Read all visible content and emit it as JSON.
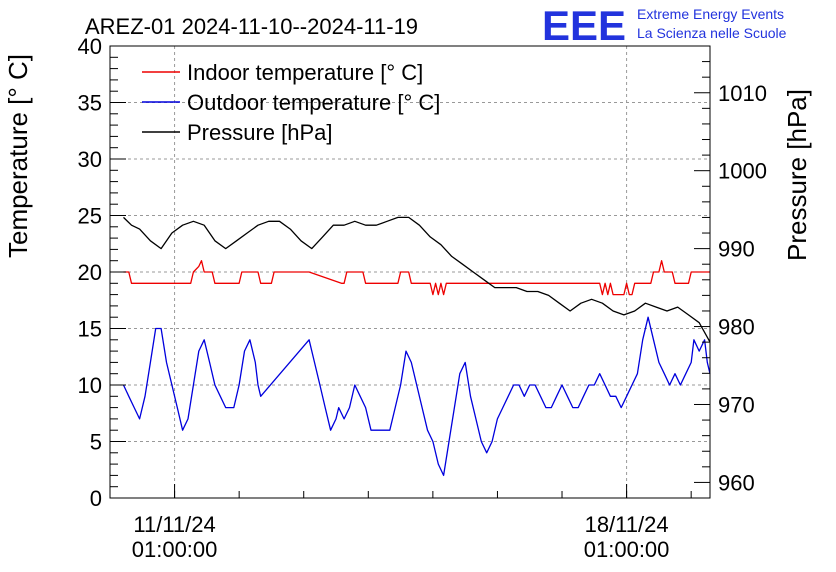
{
  "chart_data": {
    "type": "line",
    "title": "AREZ-01 2024-11-10--2024-11-19",
    "ylabel": "Temperature [° C]",
    "y2label": "Pressure [hPa]",
    "ylim": [
      0,
      40
    ],
    "y2lim": [
      958,
      1016
    ],
    "xlim": [
      "2024-11-10 01:00",
      "2024-11-19 08:00"
    ],
    "x_ticks": [
      {
        "date": "2024-11-11 01:00",
        "label_date": "11/11/24",
        "label_time": "01:00:00"
      },
      {
        "date": "2024-11-18 01:00",
        "label_date": "18/11/24",
        "label_time": "01:00:00"
      }
    ],
    "y_ticks": [
      0,
      5,
      10,
      15,
      20,
      25,
      30,
      35,
      40
    ],
    "y2_ticks": [
      960,
      970,
      980,
      990,
      1000,
      1010
    ],
    "grid": true,
    "legend_position": "top-left",
    "series": [
      {
        "name": "Indoor temperature [° C]",
        "axis": "left",
        "color": "#ee0000",
        "points": [
          [
            "2024-11-10 06:00",
            20
          ],
          [
            "2024-11-10 08:00",
            20
          ],
          [
            "2024-11-10 09:00",
            19
          ],
          [
            "2024-11-11 07:00",
            19
          ],
          [
            "2024-11-11 08:00",
            20
          ],
          [
            "2024-11-11 10:00",
            20.5
          ],
          [
            "2024-11-11 11:00",
            21
          ],
          [
            "2024-11-11 12:00",
            20
          ],
          [
            "2024-11-11 15:00",
            20
          ],
          [
            "2024-11-11 16:00",
            19
          ],
          [
            "2024-11-12 01:00",
            19
          ],
          [
            "2024-11-12 02:00",
            20
          ],
          [
            "2024-11-12 08:00",
            20
          ],
          [
            "2024-11-12 09:00",
            19
          ],
          [
            "2024-11-12 13:00",
            19
          ],
          [
            "2024-11-12 14:00",
            20
          ],
          [
            "2024-11-13 03:00",
            20
          ],
          [
            "2024-11-13 15:00",
            19
          ],
          [
            "2024-11-13 16:00",
            19
          ],
          [
            "2024-11-13 17:00",
            20
          ],
          [
            "2024-11-13 23:00",
            20
          ],
          [
            "2024-11-14 00:00",
            19
          ],
          [
            "2024-11-14 12:00",
            19
          ],
          [
            "2024-11-14 13:00",
            20
          ],
          [
            "2024-11-14 16:00",
            20
          ],
          [
            "2024-11-14 17:00",
            19
          ],
          [
            "2024-11-15 00:00",
            19
          ],
          [
            "2024-11-15 01:00",
            18
          ],
          [
            "2024-11-15 02:00",
            19
          ],
          [
            "2024-11-15 03:00",
            18
          ],
          [
            "2024-11-15 04:00",
            19
          ],
          [
            "2024-11-15 05:00",
            18
          ],
          [
            "2024-11-15 06:00",
            19
          ],
          [
            "2024-11-17 15:00",
            19
          ],
          [
            "2024-11-17 16:00",
            18
          ],
          [
            "2024-11-17 17:00",
            19
          ],
          [
            "2024-11-17 18:00",
            18
          ],
          [
            "2024-11-17 19:00",
            19
          ],
          [
            "2024-11-17 20:00",
            18
          ],
          [
            "2024-11-18 00:00",
            18
          ],
          [
            "2024-11-18 01:00",
            19
          ],
          [
            "2024-11-18 02:00",
            18
          ],
          [
            "2024-11-18 03:00",
            18
          ],
          [
            "2024-11-18 04:00",
            19
          ],
          [
            "2024-11-18 10:00",
            19
          ],
          [
            "2024-11-18 11:00",
            20
          ],
          [
            "2024-11-18 13:00",
            20
          ],
          [
            "2024-11-18 14:00",
            21
          ],
          [
            "2024-11-18 15:00",
            20
          ],
          [
            "2024-11-18 18:00",
            20
          ],
          [
            "2024-11-18 19:00",
            19
          ],
          [
            "2024-11-19 00:00",
            19
          ],
          [
            "2024-11-19 01:00",
            20
          ],
          [
            "2024-11-19 08:00",
            20
          ]
        ]
      },
      {
        "name": "Outdoor temperature [° C]",
        "axis": "left",
        "color": "#0000dd",
        "points": [
          [
            "2024-11-10 06:00",
            10
          ],
          [
            "2024-11-10 08:00",
            9
          ],
          [
            "2024-11-10 10:00",
            8
          ],
          [
            "2024-11-10 12:00",
            7
          ],
          [
            "2024-11-10 14:00",
            9
          ],
          [
            "2024-11-10 16:00",
            12
          ],
          [
            "2024-11-10 18:00",
            15
          ],
          [
            "2024-11-10 20:00",
            15
          ],
          [
            "2024-11-10 22:00",
            12
          ],
          [
            "2024-11-11 00:00",
            10
          ],
          [
            "2024-11-11 02:00",
            8
          ],
          [
            "2024-11-11 04:00",
            6
          ],
          [
            "2024-11-11 06:00",
            7
          ],
          [
            "2024-11-11 08:00",
            10
          ],
          [
            "2024-11-11 10:00",
            13
          ],
          [
            "2024-11-11 12:00",
            14
          ],
          [
            "2024-11-11 14:00",
            12
          ],
          [
            "2024-11-11 16:00",
            10
          ],
          [
            "2024-11-11 18:00",
            9
          ],
          [
            "2024-11-11 20:00",
            8
          ],
          [
            "2024-11-11 23:00",
            8
          ],
          [
            "2024-11-12 01:00",
            10
          ],
          [
            "2024-11-12 03:00",
            13
          ],
          [
            "2024-11-12 05:00",
            14
          ],
          [
            "2024-11-12 07:00",
            12
          ],
          [
            "2024-11-12 08:00",
            10
          ],
          [
            "2024-11-12 09:00",
            9
          ],
          [
            "2024-11-13 03:00",
            14
          ],
          [
            "2024-11-13 05:00",
            12
          ],
          [
            "2024-11-13 07:00",
            10
          ],
          [
            "2024-11-13 09:00",
            8
          ],
          [
            "2024-11-13 11:00",
            6
          ],
          [
            "2024-11-13 13:00",
            7
          ],
          [
            "2024-11-13 14:00",
            8
          ],
          [
            "2024-11-13 16:00",
            7
          ],
          [
            "2024-11-13 18:00",
            8
          ],
          [
            "2024-11-13 20:00",
            10
          ],
          [
            "2024-11-13 22:00",
            9
          ],
          [
            "2024-11-14 00:00",
            8
          ],
          [
            "2024-11-14 02:00",
            6
          ],
          [
            "2024-11-14 06:00",
            6
          ],
          [
            "2024-11-14 09:00",
            6
          ],
          [
            "2024-11-14 11:00",
            8
          ],
          [
            "2024-11-14 13:00",
            10
          ],
          [
            "2024-11-14 15:00",
            13
          ],
          [
            "2024-11-14 17:00",
            12
          ],
          [
            "2024-11-14 19:00",
            10
          ],
          [
            "2024-11-14 21:00",
            8
          ],
          [
            "2024-11-14 23:00",
            6
          ],
          [
            "2024-11-15 01:00",
            5
          ],
          [
            "2024-11-15 03:00",
            3
          ],
          [
            "2024-11-15 05:00",
            2
          ],
          [
            "2024-11-15 07:00",
            5
          ],
          [
            "2024-11-15 09:00",
            8
          ],
          [
            "2024-11-15 11:00",
            11
          ],
          [
            "2024-11-15 13:00",
            12
          ],
          [
            "2024-11-15 15:00",
            9
          ],
          [
            "2024-11-15 17:00",
            7
          ],
          [
            "2024-11-15 19:00",
            5
          ],
          [
            "2024-11-15 21:00",
            4
          ],
          [
            "2024-11-15 23:00",
            5
          ],
          [
            "2024-11-16 01:00",
            7
          ],
          [
            "2024-11-16 03:00",
            8
          ],
          [
            "2024-11-16 05:00",
            9
          ],
          [
            "2024-11-16 07:00",
            10
          ],
          [
            "2024-11-16 09:00",
            10
          ],
          [
            "2024-11-16 11:00",
            9
          ],
          [
            "2024-11-16 13:00",
            10
          ],
          [
            "2024-11-16 15:00",
            10
          ],
          [
            "2024-11-16 17:00",
            9
          ],
          [
            "2024-11-16 19:00",
            8
          ],
          [
            "2024-11-16 21:00",
            8
          ],
          [
            "2024-11-16 23:00",
            9
          ],
          [
            "2024-11-17 01:00",
            10
          ],
          [
            "2024-11-17 03:00",
            9
          ],
          [
            "2024-11-17 05:00",
            8
          ],
          [
            "2024-11-17 07:00",
            8
          ],
          [
            "2024-11-17 09:00",
            9
          ],
          [
            "2024-11-17 11:00",
            10
          ],
          [
            "2024-11-17 13:00",
            10
          ],
          [
            "2024-11-17 15:00",
            11
          ],
          [
            "2024-11-17 17:00",
            10
          ],
          [
            "2024-11-17 19:00",
            9
          ],
          [
            "2024-11-17 21:00",
            9
          ],
          [
            "2024-11-17 23:00",
            8
          ],
          [
            "2024-11-18 01:00",
            9
          ],
          [
            "2024-11-18 03:00",
            10
          ],
          [
            "2024-11-18 05:00",
            11
          ],
          [
            "2024-11-18 07:00",
            14
          ],
          [
            "2024-11-18 09:00",
            16
          ],
          [
            "2024-11-18 11:00",
            14
          ],
          [
            "2024-11-18 13:00",
            12
          ],
          [
            "2024-11-18 15:00",
            11
          ],
          [
            "2024-11-18 17:00",
            10
          ],
          [
            "2024-11-18 19:00",
            11
          ],
          [
            "2024-11-18 21:00",
            10
          ],
          [
            "2024-11-18 23:00",
            11
          ],
          [
            "2024-11-19 01:00",
            12
          ],
          [
            "2024-11-19 02:00",
            14
          ],
          [
            "2024-11-19 04:00",
            13
          ],
          [
            "2024-11-19 06:00",
            14
          ],
          [
            "2024-11-19 07:00",
            12
          ],
          [
            "2024-11-19 08:00",
            11
          ]
        ]
      },
      {
        "name": "Pressure [hPa]",
        "axis": "right",
        "color": "#000000",
        "points": [
          [
            "2024-11-10 06:00",
            994
          ],
          [
            "2024-11-10 09:00",
            993
          ],
          [
            "2024-11-10 12:00",
            992.5
          ],
          [
            "2024-11-10 16:00",
            991
          ],
          [
            "2024-11-10 20:00",
            990
          ],
          [
            "2024-11-11 00:00",
            992
          ],
          [
            "2024-11-11 04:00",
            993
          ],
          [
            "2024-11-11 08:00",
            993.5
          ],
          [
            "2024-11-11 12:00",
            993
          ],
          [
            "2024-11-11 16:00",
            991
          ],
          [
            "2024-11-11 20:00",
            990
          ],
          [
            "2024-11-12 00:00",
            991
          ],
          [
            "2024-11-12 04:00",
            992
          ],
          [
            "2024-11-12 08:00",
            993
          ],
          [
            "2024-11-12 12:00",
            993.5
          ],
          [
            "2024-11-12 16:00",
            993.5
          ],
          [
            "2024-11-12 20:00",
            992.5
          ],
          [
            "2024-11-13 00:00",
            991
          ],
          [
            "2024-11-13 04:00",
            990
          ],
          [
            "2024-11-13 08:00",
            991.5
          ],
          [
            "2024-11-13 12:00",
            993
          ],
          [
            "2024-11-13 16:00",
            993
          ],
          [
            "2024-11-13 20:00",
            993.5
          ],
          [
            "2024-11-14 00:00",
            993
          ],
          [
            "2024-11-14 04:00",
            993
          ],
          [
            "2024-11-14 08:00",
            993.5
          ],
          [
            "2024-11-14 12:00",
            994
          ],
          [
            "2024-11-14 16:00",
            994
          ],
          [
            "2024-11-14 20:00",
            993
          ],
          [
            "2024-11-15 00:00",
            991.5
          ],
          [
            "2024-11-15 04:00",
            990.5
          ],
          [
            "2024-11-15 08:00",
            989
          ],
          [
            "2024-11-15 12:00",
            988
          ],
          [
            "2024-11-15 16:00",
            987
          ],
          [
            "2024-11-15 20:00",
            986
          ],
          [
            "2024-11-16 00:00",
            985
          ],
          [
            "2024-11-16 04:00",
            985
          ],
          [
            "2024-11-16 08:00",
            985
          ],
          [
            "2024-11-16 12:00",
            984.5
          ],
          [
            "2024-11-16 16:00",
            984.5
          ],
          [
            "2024-11-16 20:00",
            984
          ],
          [
            "2024-11-17 00:00",
            983
          ],
          [
            "2024-11-17 04:00",
            982
          ],
          [
            "2024-11-17 08:00",
            983
          ],
          [
            "2024-11-17 12:00",
            983.5
          ],
          [
            "2024-11-17 16:00",
            983
          ],
          [
            "2024-11-17 20:00",
            982
          ],
          [
            "2024-11-18 00:00",
            981.5
          ],
          [
            "2024-11-18 04:00",
            982
          ],
          [
            "2024-11-18 08:00",
            983
          ],
          [
            "2024-11-18 12:00",
            982.5
          ],
          [
            "2024-11-18 16:00",
            982
          ],
          [
            "2024-11-18 20:00",
            982.5
          ],
          [
            "2024-11-19 00:00",
            981.5
          ],
          [
            "2024-11-19 04:00",
            980.5
          ],
          [
            "2024-11-19 08:00",
            978
          ]
        ]
      }
    ]
  },
  "logo": {
    "mark": "EEE",
    "line1": "Extreme Energy Events",
    "line2": "La Scienza nelle Scuole"
  }
}
